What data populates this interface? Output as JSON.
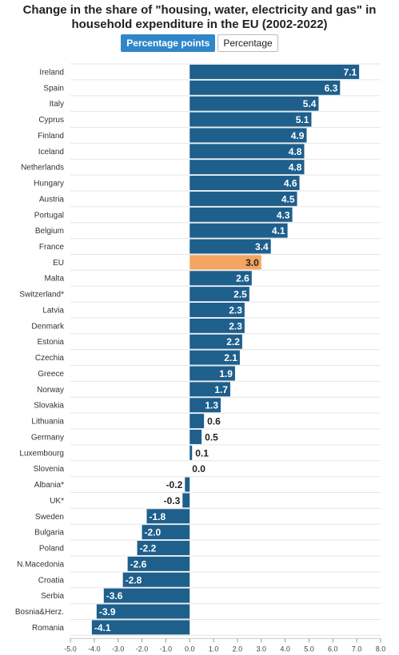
{
  "title_line1": "Change in the share of \"housing, water, electricity and gas\" in",
  "title_line2": "household expenditure in the EU (2002-2022)",
  "toggle": {
    "active_label": "Percentage points",
    "inactive_label": "Percentage"
  },
  "colors": {
    "bar": "#1e5f8c",
    "highlight": "#f4a561",
    "grid": "#e6e6e6",
    "active_button": "#2f86c9"
  },
  "chart_data": {
    "type": "bar",
    "orientation": "horizontal",
    "title": "Change in the share of \"housing, water, electricity and gas\" in household expenditure in the EU (2002-2022)",
    "categories": [
      "Ireland",
      "Spain",
      "Italy",
      "Cyprus",
      "Finland",
      "Iceland",
      "Netherlands",
      "Hungary",
      "Austria",
      "Portugal",
      "Belgium",
      "France",
      "EU",
      "Malta",
      "Switzerland*",
      "Latvia",
      "Denmark",
      "Estonia",
      "Czechia",
      "Greece",
      "Norway",
      "Slovakia",
      "Lithuania",
      "Germany",
      "Luxembourg",
      "Slovenia",
      "Albania*",
      "UK*",
      "Sweden",
      "Bulgaria",
      "Poland",
      "N.Macedonia",
      "Croatia",
      "Serbia",
      "Bosnia&Herz.",
      "Romania"
    ],
    "values": [
      7.1,
      6.3,
      5.4,
      5.1,
      4.9,
      4.8,
      4.8,
      4.6,
      4.5,
      4.3,
      4.1,
      3.4,
      3.0,
      2.6,
      2.5,
      2.3,
      2.3,
      2.2,
      2.1,
      1.9,
      1.7,
      1.3,
      0.6,
      0.5,
      0.1,
      0.0,
      -0.2,
      -0.3,
      -1.8,
      -2.0,
      -2.2,
      -2.6,
      -2.8,
      -3.6,
      -3.9,
      -4.1
    ],
    "value_labels": [
      "7.1",
      "6.3",
      "5.4",
      "5.1",
      "4.9",
      "4.8",
      "4.8",
      "4.6",
      "4.5",
      "4.3",
      "4.1",
      "3.4",
      "3.0",
      "2.6",
      "2.5",
      "2.3",
      "2.3",
      "2.2",
      "2.1",
      "1.9",
      "1.7",
      "1.3",
      "0.6",
      "0.5",
      "0.1",
      "0.0",
      "-0.2",
      "-0.3",
      "-1.8",
      "-2.0",
      "-2.2",
      "-2.6",
      "-2.8",
      "-3.6",
      "-3.9",
      "-4.1"
    ],
    "highlight_category": "EU",
    "xlim": [
      -5.0,
      8.0
    ],
    "xticks": [
      "-5.0",
      "-4.0",
      "-3.0",
      "-2.0",
      "-1.0",
      "0.0",
      "1.0",
      "2.0",
      "3.0",
      "4.0",
      "5.0",
      "6.0",
      "7.0",
      "8.0"
    ],
    "grid": true,
    "legend": "none"
  }
}
